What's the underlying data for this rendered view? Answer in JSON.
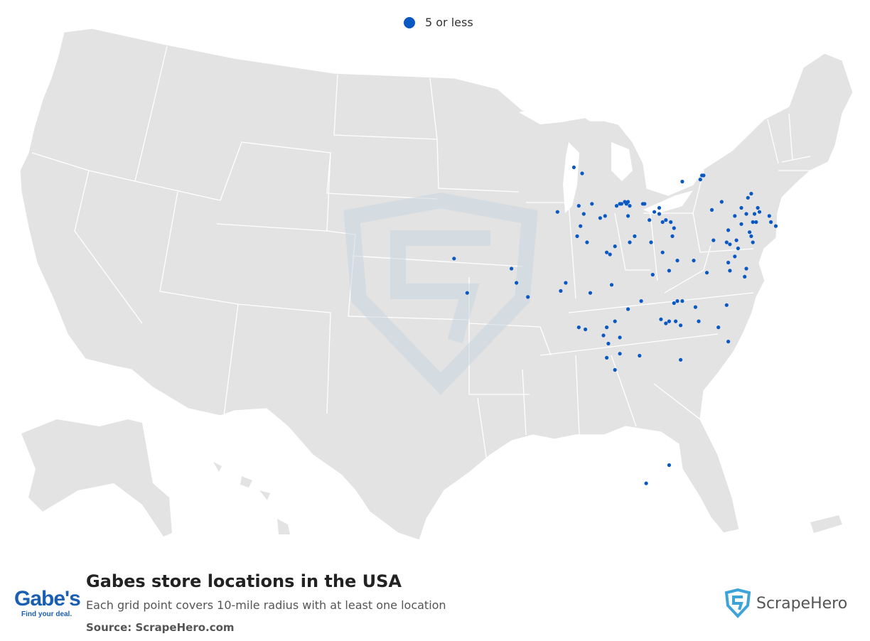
{
  "legend": {
    "label": "5 or less",
    "color": "#0a58c2"
  },
  "title": "Gabes store locations in the USA",
  "subtitle": "Each grid point covers 10-mile radius with at least one location",
  "source": "Source: ScrapeHero.com",
  "brand": {
    "logo_text": "Gabe's",
    "logo_tagline": "Find your deal.",
    "scrapehero_label": "ScrapeHero"
  },
  "colors": {
    "land": "#e3e3e3",
    "border": "#ffffff",
    "dot": "#0a58c2",
    "watermark": "#c9d6e0"
  },
  "map_data": {
    "type": "point-map",
    "region": "United States (contiguous, Alaska and Hawaii insets)",
    "legend_categories": [
      "5 or less"
    ],
    "points_lonlat": [
      [
        -86.8,
        43.5
      ],
      [
        -86.3,
        43.2
      ],
      [
        -79.0,
        43.1
      ],
      [
        -78.9,
        43.1
      ],
      [
        -79.1,
        42.9
      ],
      [
        -80.2,
        42.8
      ],
      [
        -76.0,
        42.2
      ],
      [
        -76.2,
        42.0
      ],
      [
        -75.6,
        41.5
      ],
      [
        -75.8,
        41.2
      ],
      [
        -75.9,
        40.8
      ],
      [
        -75.5,
        41.3
      ],
      [
        -74.9,
        41.1
      ],
      [
        -76.6,
        41.5
      ],
      [
        -77.8,
        41.8
      ],
      [
        -78.4,
        41.4
      ],
      [
        -76.3,
        41.2
      ],
      [
        -77.0,
        41.1
      ],
      [
        -76.6,
        40.7
      ],
      [
        -75.7,
        40.8
      ],
      [
        -74.8,
        40.8
      ],
      [
        -74.5,
        40.6
      ],
      [
        -77.4,
        40.4
      ],
      [
        -78.3,
        39.9
      ],
      [
        -77.5,
        39.8
      ],
      [
        -76.9,
        39.9
      ],
      [
        -76.8,
        39.5
      ],
      [
        -76.1,
        40.3
      ],
      [
        -76.0,
        40.1
      ],
      [
        -75.9,
        39.8
      ],
      [
        -77.0,
        39.1
      ],
      [
        -77.3,
        39.7
      ],
      [
        -87.8,
        41.3
      ],
      [
        -86.5,
        41.6
      ],
      [
        -86.2,
        41.2
      ],
      [
        -85.7,
        41.7
      ],
      [
        -86.4,
        40.6
      ],
      [
        -86.6,
        40.1
      ],
      [
        -86.0,
        39.8
      ],
      [
        -84.2,
        41.6
      ],
      [
        -84.0,
        41.7
      ],
      [
        -83.9,
        41.7
      ],
      [
        -83.7,
        41.8
      ],
      [
        -83.6,
        41.7
      ],
      [
        -83.5,
        41.8
      ],
      [
        -83.4,
        41.6
      ],
      [
        -84.9,
        41.1
      ],
      [
        -85.2,
        41.0
      ],
      [
        -83.5,
        41.1
      ],
      [
        -82.6,
        41.7
      ],
      [
        -82.5,
        41.7
      ],
      [
        -81.9,
        41.3
      ],
      [
        -81.6,
        41.5
      ],
      [
        -82.2,
        40.9
      ],
      [
        -81.6,
        41.2
      ],
      [
        -81.4,
        40.8
      ],
      [
        -81.2,
        40.9
      ],
      [
        -80.9,
        40.8
      ],
      [
        -80.7,
        40.5
      ],
      [
        -80.8,
        40.1
      ],
      [
        -82.1,
        39.8
      ],
      [
        -83.1,
        40.1
      ],
      [
        -83.4,
        39.8
      ],
      [
        -84.3,
        39.6
      ],
      [
        -84.6,
        39.2
      ],
      [
        -84.8,
        39.3
      ],
      [
        -81.4,
        39.3
      ],
      [
        -80.5,
        38.9
      ],
      [
        -81.0,
        38.4
      ],
      [
        -82.0,
        38.2
      ],
      [
        -79.5,
        38.9
      ],
      [
        -78.7,
        38.3
      ],
      [
        -77.4,
        38.8
      ],
      [
        -77.3,
        38.4
      ],
      [
        -76.3,
        38.5
      ],
      [
        -76.4,
        38.1
      ],
      [
        -84.5,
        37.7
      ],
      [
        -85.8,
        37.3
      ],
      [
        -87.3,
        37.8
      ],
      [
        -87.6,
        37.4
      ],
      [
        -89.6,
        37.1
      ],
      [
        -90.3,
        37.8
      ],
      [
        -90.6,
        38.5
      ],
      [
        -94.1,
        39.0
      ],
      [
        -93.3,
        37.3
      ],
      [
        -82.7,
        36.9
      ],
      [
        -83.5,
        36.5
      ],
      [
        -80.7,
        36.8
      ],
      [
        -80.5,
        36.9
      ],
      [
        -80.2,
        36.9
      ],
      [
        -79.4,
        36.6
      ],
      [
        -77.5,
        36.7
      ],
      [
        -81.5,
        36.0
      ],
      [
        -81.2,
        35.8
      ],
      [
        -81.0,
        35.9
      ],
      [
        -80.6,
        35.9
      ],
      [
        -80.3,
        35.7
      ],
      [
        -79.2,
        35.9
      ],
      [
        -78.0,
        35.6
      ],
      [
        -84.3,
        35.9
      ],
      [
        -84.8,
        35.6
      ],
      [
        -86.5,
        35.6
      ],
      [
        -86.1,
        35.5
      ],
      [
        -85.0,
        35.2
      ],
      [
        -84.0,
        35.1
      ],
      [
        -84.7,
        34.8
      ],
      [
        -84.0,
        34.3
      ],
      [
        -80.3,
        34.0
      ],
      [
        -77.4,
        34.9
      ],
      [
        -82.8,
        34.2
      ],
      [
        -84.8,
        34.1
      ],
      [
        -84.3,
        33.5
      ],
      [
        -81.0,
        28.8
      ],
      [
        -82.4,
        27.9
      ]
    ]
  }
}
